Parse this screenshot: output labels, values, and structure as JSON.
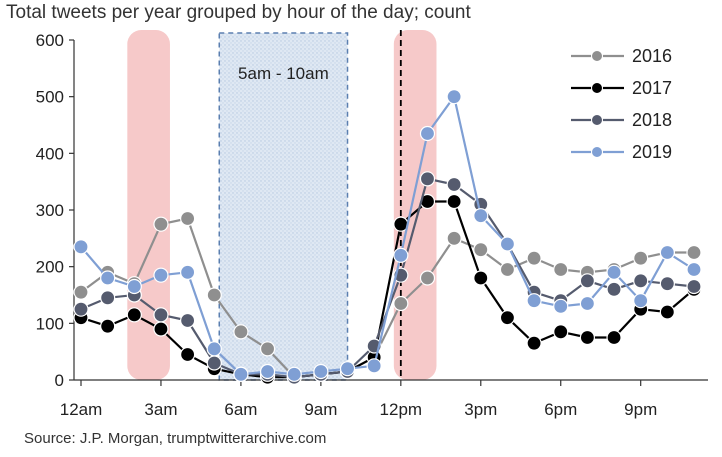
{
  "title": "Total tweets per year grouped by hour of the day; count",
  "source": "Source: J.P. Morgan, trumptwitterarchive.com",
  "chart_data": {
    "type": "line",
    "x": [
      0,
      1,
      2,
      3,
      4,
      5,
      6,
      7,
      8,
      9,
      10,
      11,
      12,
      13,
      14,
      15,
      16,
      17,
      18,
      19,
      20,
      21,
      22,
      23
    ],
    "xlim": [
      0,
      23
    ],
    "xticks": [
      {
        "x": 0,
        "label": "12am"
      },
      {
        "x": 3,
        "label": "3am"
      },
      {
        "x": 6,
        "label": "6am"
      },
      {
        "x": 9,
        "label": "9am"
      },
      {
        "x": 12,
        "label": "12pm"
      },
      {
        "x": 15,
        "label": "3pm"
      },
      {
        "x": 18,
        "label": "6pm"
      },
      {
        "x": 21,
        "label": "9pm"
      }
    ],
    "ylim": [
      0,
      600
    ],
    "yticks": [
      0,
      100,
      200,
      300,
      400,
      500,
      600
    ],
    "series": [
      {
        "name": "2016",
        "color": "#8f8f8f",
        "values": [
          155,
          190,
          170,
          275,
          285,
          150,
          85,
          55,
          5,
          10,
          15,
          40,
          135,
          180,
          250,
          230,
          195,
          215,
          195,
          190,
          195,
          215,
          225,
          225
        ]
      },
      {
        "name": "2017",
        "color": "#000000",
        "values": [
          110,
          95,
          115,
          90,
          45,
          20,
          10,
          5,
          5,
          10,
          15,
          40,
          275,
          315,
          315,
          180,
          110,
          65,
          85,
          75,
          75,
          125,
          120,
          160
        ]
      },
      {
        "name": "2018",
        "color": "#555b6e",
        "values": [
          125,
          145,
          150,
          115,
          105,
          30,
          10,
          10,
          5,
          10,
          15,
          60,
          185,
          355,
          345,
          310,
          240,
          155,
          140,
          175,
          160,
          175,
          170,
          165
        ]
      },
      {
        "name": "2019",
        "color": "#7f9fd4",
        "values": [
          235,
          180,
          165,
          185,
          190,
          55,
          10,
          15,
          10,
          15,
          20,
          25,
          220,
          435,
          500,
          290,
          240,
          140,
          130,
          135,
          190,
          140,
          225,
          195
        ]
      }
    ],
    "highlights": [
      {
        "from": 2,
        "to": 3,
        "kind": "red-band"
      },
      {
        "from": 12,
        "to": 13,
        "kind": "red-band"
      },
      {
        "from": 5,
        "to": 10,
        "kind": "dotted-box",
        "label": "5am - 10am"
      }
    ],
    "vline": {
      "x": 12
    },
    "legend": {
      "position": "top-right"
    }
  }
}
